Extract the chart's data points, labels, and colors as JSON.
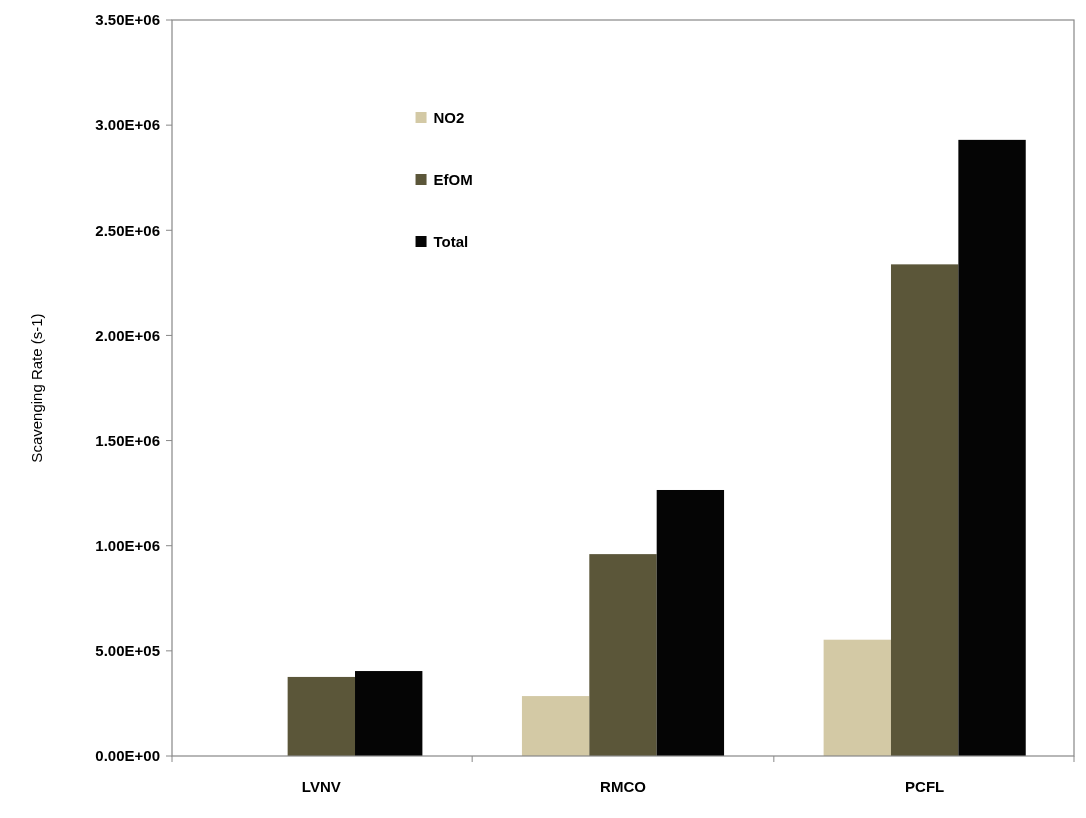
{
  "chart_data": {
    "type": "bar",
    "ylabel": "Scavenging Rate (s-1)",
    "categories": [
      "LVNV",
      "RMCO",
      "PCFL"
    ],
    "series": [
      {
        "name": "NO2",
        "color": "#d3c9a5",
        "values": [
          null,
          285000,
          553000
        ]
      },
      {
        "name": "EfOM",
        "color": "#5b5639",
        "values": [
          376000,
          960000,
          2338000
        ]
      },
      {
        "name": "Total",
        "color": "#050505",
        "values": [
          404000,
          1265000,
          2930000
        ]
      }
    ],
    "ylim": [
      0,
      3500000
    ],
    "yticks": [
      {
        "value": 0,
        "label": "0.00E+00"
      },
      {
        "value": 500000,
        "label": "5.00E+05"
      },
      {
        "value": 1000000,
        "label": "1.00E+06"
      },
      {
        "value": 1500000,
        "label": "1.50E+06"
      },
      {
        "value": 2000000,
        "label": "2.00E+06"
      },
      {
        "value": 2500000,
        "label": "2.50E+06"
      },
      {
        "value": 3000000,
        "label": "3.00E+06"
      },
      {
        "value": 3500000,
        "label": "3.50E+06"
      }
    ],
    "grid": false,
    "legend": "top left"
  }
}
